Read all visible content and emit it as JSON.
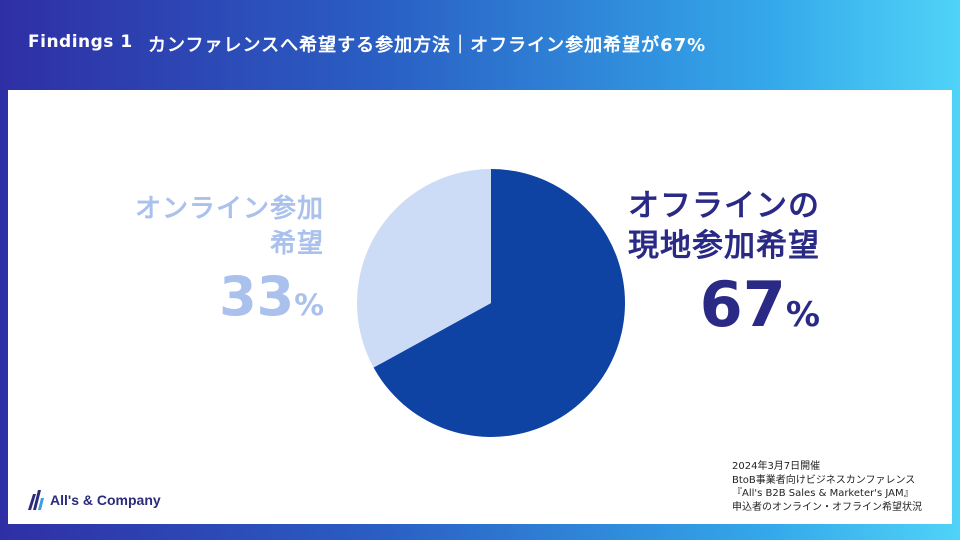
{
  "header": {
    "findings_label": "Findings 1",
    "headline": "カンファレンスへ希望する参加方法｜オフライン参加希望が67%"
  },
  "chart_data": {
    "type": "pie",
    "slices": [
      {
        "label": "オフラインの現地参加希望",
        "value": 67,
        "color": "#0e43a4"
      },
      {
        "label": "オンライン参加希望",
        "value": 33,
        "color": "#cddcf6"
      }
    ]
  },
  "labels": {
    "online_name": "オンライン参加希望",
    "online_value": "33",
    "offline_name": "オフラインの現地参加希望",
    "offline_value": "67",
    "percent_sign": "%"
  },
  "source": {
    "line1": "2024年3月7日開催",
    "line2": "BtoB事業者向けビジネスカンファレンス",
    "line3": "『All's B2B Sales & Marketer's JAM』",
    "line4": "申込者のオンライン・オフライン希望状況"
  },
  "logo": {
    "text": "All's & Company"
  }
}
